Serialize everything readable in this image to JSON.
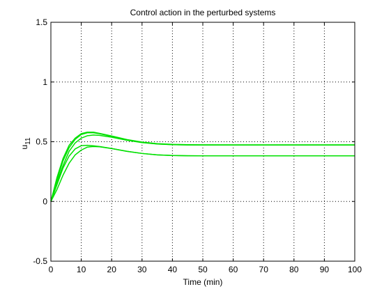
{
  "chart_data": {
    "type": "line",
    "title": "Control action in the perturbed systems",
    "xlabel": "Time (min)",
    "ylabel": {
      "base": "u",
      "subscript": "11"
    },
    "xlim": [
      0,
      100
    ],
    "ylim": [
      -0.5,
      1.5
    ],
    "xticks": [
      0,
      10,
      20,
      30,
      40,
      50,
      60,
      70,
      80,
      90,
      100
    ],
    "yticks": [
      -0.5,
      0,
      0.5,
      1,
      1.5
    ],
    "xtick_labels": [
      "0",
      "10",
      "20",
      "30",
      "40",
      "50",
      "60",
      "70",
      "80",
      "90",
      "100"
    ],
    "ytick_labels": [
      "-0.5",
      "0",
      "0.5",
      "1",
      "1.5"
    ],
    "grid": true,
    "grid_style": "dotted",
    "line_color": "#00e000",
    "series": [
      {
        "x": [
          0,
          2,
          4,
          6,
          8,
          10,
          12,
          14,
          16,
          20,
          25,
          30,
          35,
          40,
          45,
          50,
          60,
          70,
          80,
          90,
          100
        ],
        "values": [
          0,
          0.18,
          0.34,
          0.45,
          0.52,
          0.56,
          0.575,
          0.575,
          0.567,
          0.545,
          0.515,
          0.495,
          0.482,
          0.476,
          0.474,
          0.473,
          0.473,
          0.473,
          0.473,
          0.473,
          0.473
        ]
      },
      {
        "x": [
          0,
          2,
          4,
          6,
          8,
          10,
          12,
          14,
          16,
          20,
          25,
          30,
          35,
          40,
          45,
          50,
          60,
          70,
          80,
          90,
          100
        ],
        "values": [
          0,
          0.2,
          0.36,
          0.47,
          0.53,
          0.568,
          0.58,
          0.58,
          0.57,
          0.548,
          0.518,
          0.497,
          0.484,
          0.478,
          0.475,
          0.474,
          0.473,
          0.473,
          0.473,
          0.473,
          0.473
        ]
      },
      {
        "x": [
          0,
          2,
          4,
          6,
          8,
          10,
          12,
          14,
          16,
          20,
          25,
          30,
          35,
          40,
          45,
          50,
          60,
          70,
          80,
          90,
          100
        ],
        "values": [
          0,
          0.14,
          0.28,
          0.38,
          0.44,
          0.467,
          0.47,
          0.466,
          0.46,
          0.443,
          0.42,
          0.402,
          0.39,
          0.385,
          0.383,
          0.382,
          0.382,
          0.382,
          0.382,
          0.382,
          0.382
        ]
      },
      {
        "x": [
          0,
          2,
          4,
          6,
          8,
          10,
          12,
          14,
          16,
          20,
          25,
          30,
          35,
          40,
          45,
          50,
          60,
          70,
          80,
          90,
          100
        ],
        "values": [
          0,
          0.1,
          0.22,
          0.32,
          0.39,
          0.43,
          0.455,
          0.46,
          0.458,
          0.443,
          0.42,
          0.402,
          0.39,
          0.385,
          0.383,
          0.382,
          0.382,
          0.382,
          0.382,
          0.382,
          0.382
        ]
      },
      {
        "x": [
          0,
          2,
          4,
          6,
          8,
          10,
          12,
          14,
          16,
          20,
          25,
          30,
          35,
          40,
          45,
          50,
          60,
          70,
          80,
          90,
          100
        ],
        "values": [
          0,
          0.16,
          0.3,
          0.42,
          0.49,
          0.53,
          0.55,
          0.556,
          0.553,
          0.538,
          0.512,
          0.493,
          0.481,
          0.475,
          0.473,
          0.473,
          0.473,
          0.473,
          0.473,
          0.473,
          0.473
        ]
      }
    ]
  }
}
